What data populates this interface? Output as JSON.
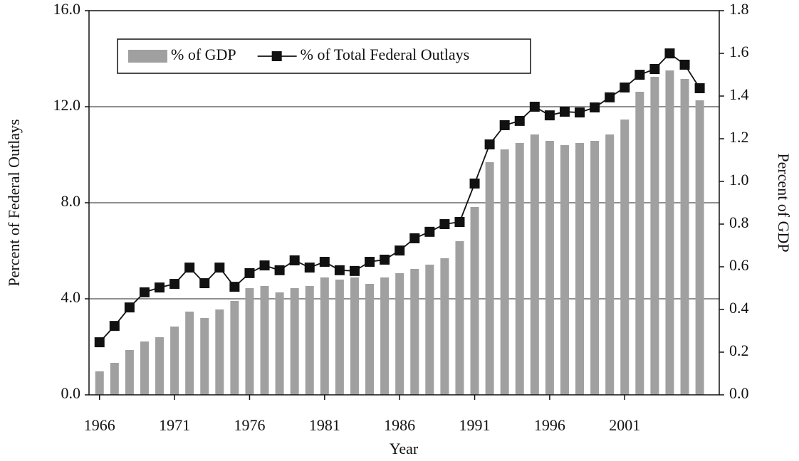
{
  "chart_data": {
    "type": "combo",
    "xlabel": "Year",
    "ylabel": "Percent of Federal Outlays",
    "y2label": "Percent of GDP",
    "x": [
      1966,
      1967,
      1968,
      1969,
      1970,
      1971,
      1972,
      1973,
      1974,
      1975,
      1976,
      1977,
      1978,
      1979,
      1980,
      1981,
      1982,
      1983,
      1984,
      1985,
      1986,
      1987,
      1988,
      1989,
      1990,
      1991,
      1992,
      1993,
      1994,
      1995,
      1996,
      1997,
      1998,
      1999,
      2000,
      2001,
      2002,
      2003,
      2004,
      2005,
      2006
    ],
    "xlim": [
      1965.3,
      2007.3
    ],
    "xticks": [
      1966,
      1971,
      1976,
      1981,
      1986,
      1991,
      1996,
      2001
    ],
    "ylim": [
      0,
      16
    ],
    "yticks": [
      {
        "value": 0,
        "label": "0.0"
      },
      {
        "value": 4,
        "label": "4.0"
      },
      {
        "value": 8,
        "label": "8.0"
      },
      {
        "value": 12,
        "label": "12.0"
      },
      {
        "value": 16,
        "label": "16.0"
      }
    ],
    "y2lim": [
      0,
      1.8
    ],
    "y2ticks": [
      {
        "value": 0,
        "label": "0.0"
      },
      0.2,
      0.4,
      0.6,
      0.8,
      {
        "value": 1,
        "label": "1.0"
      },
      1.2,
      1.4,
      1.6,
      1.8
    ],
    "grid": true,
    "legend": "top-left",
    "series": [
      {
        "name": "% of GDP",
        "type": "bar",
        "axis": "y2",
        "color": "#a0a0a0",
        "values": [
          0.11,
          0.15,
          0.21,
          0.25,
          0.27,
          0.32,
          0.39,
          0.36,
          0.4,
          0.44,
          0.5,
          0.51,
          0.48,
          0.5,
          0.51,
          0.55,
          0.54,
          0.55,
          0.52,
          0.55,
          0.57,
          0.59,
          0.61,
          0.64,
          0.72,
          0.88,
          1.09,
          1.15,
          1.18,
          1.22,
          1.19,
          1.17,
          1.18,
          1.19,
          1.22,
          1.29,
          1.42,
          1.49,
          1.52,
          1.48,
          1.38
        ]
      },
      {
        "name": "% of Total Federal Outlays",
        "type": "line",
        "color": "#111111",
        "values": [
          2.19,
          2.87,
          3.64,
          4.27,
          4.47,
          4.62,
          5.3,
          4.65,
          5.3,
          4.5,
          5.07,
          5.39,
          5.19,
          5.6,
          5.3,
          5.54,
          5.19,
          5.16,
          5.54,
          5.63,
          6.01,
          6.52,
          6.79,
          7.11,
          7.2,
          8.8,
          10.43,
          11.23,
          11.41,
          12.0,
          11.64,
          11.79,
          11.76,
          11.97,
          12.39,
          12.8,
          13.33,
          13.57,
          14.22,
          13.75,
          12.77
        ]
      }
    ]
  }
}
